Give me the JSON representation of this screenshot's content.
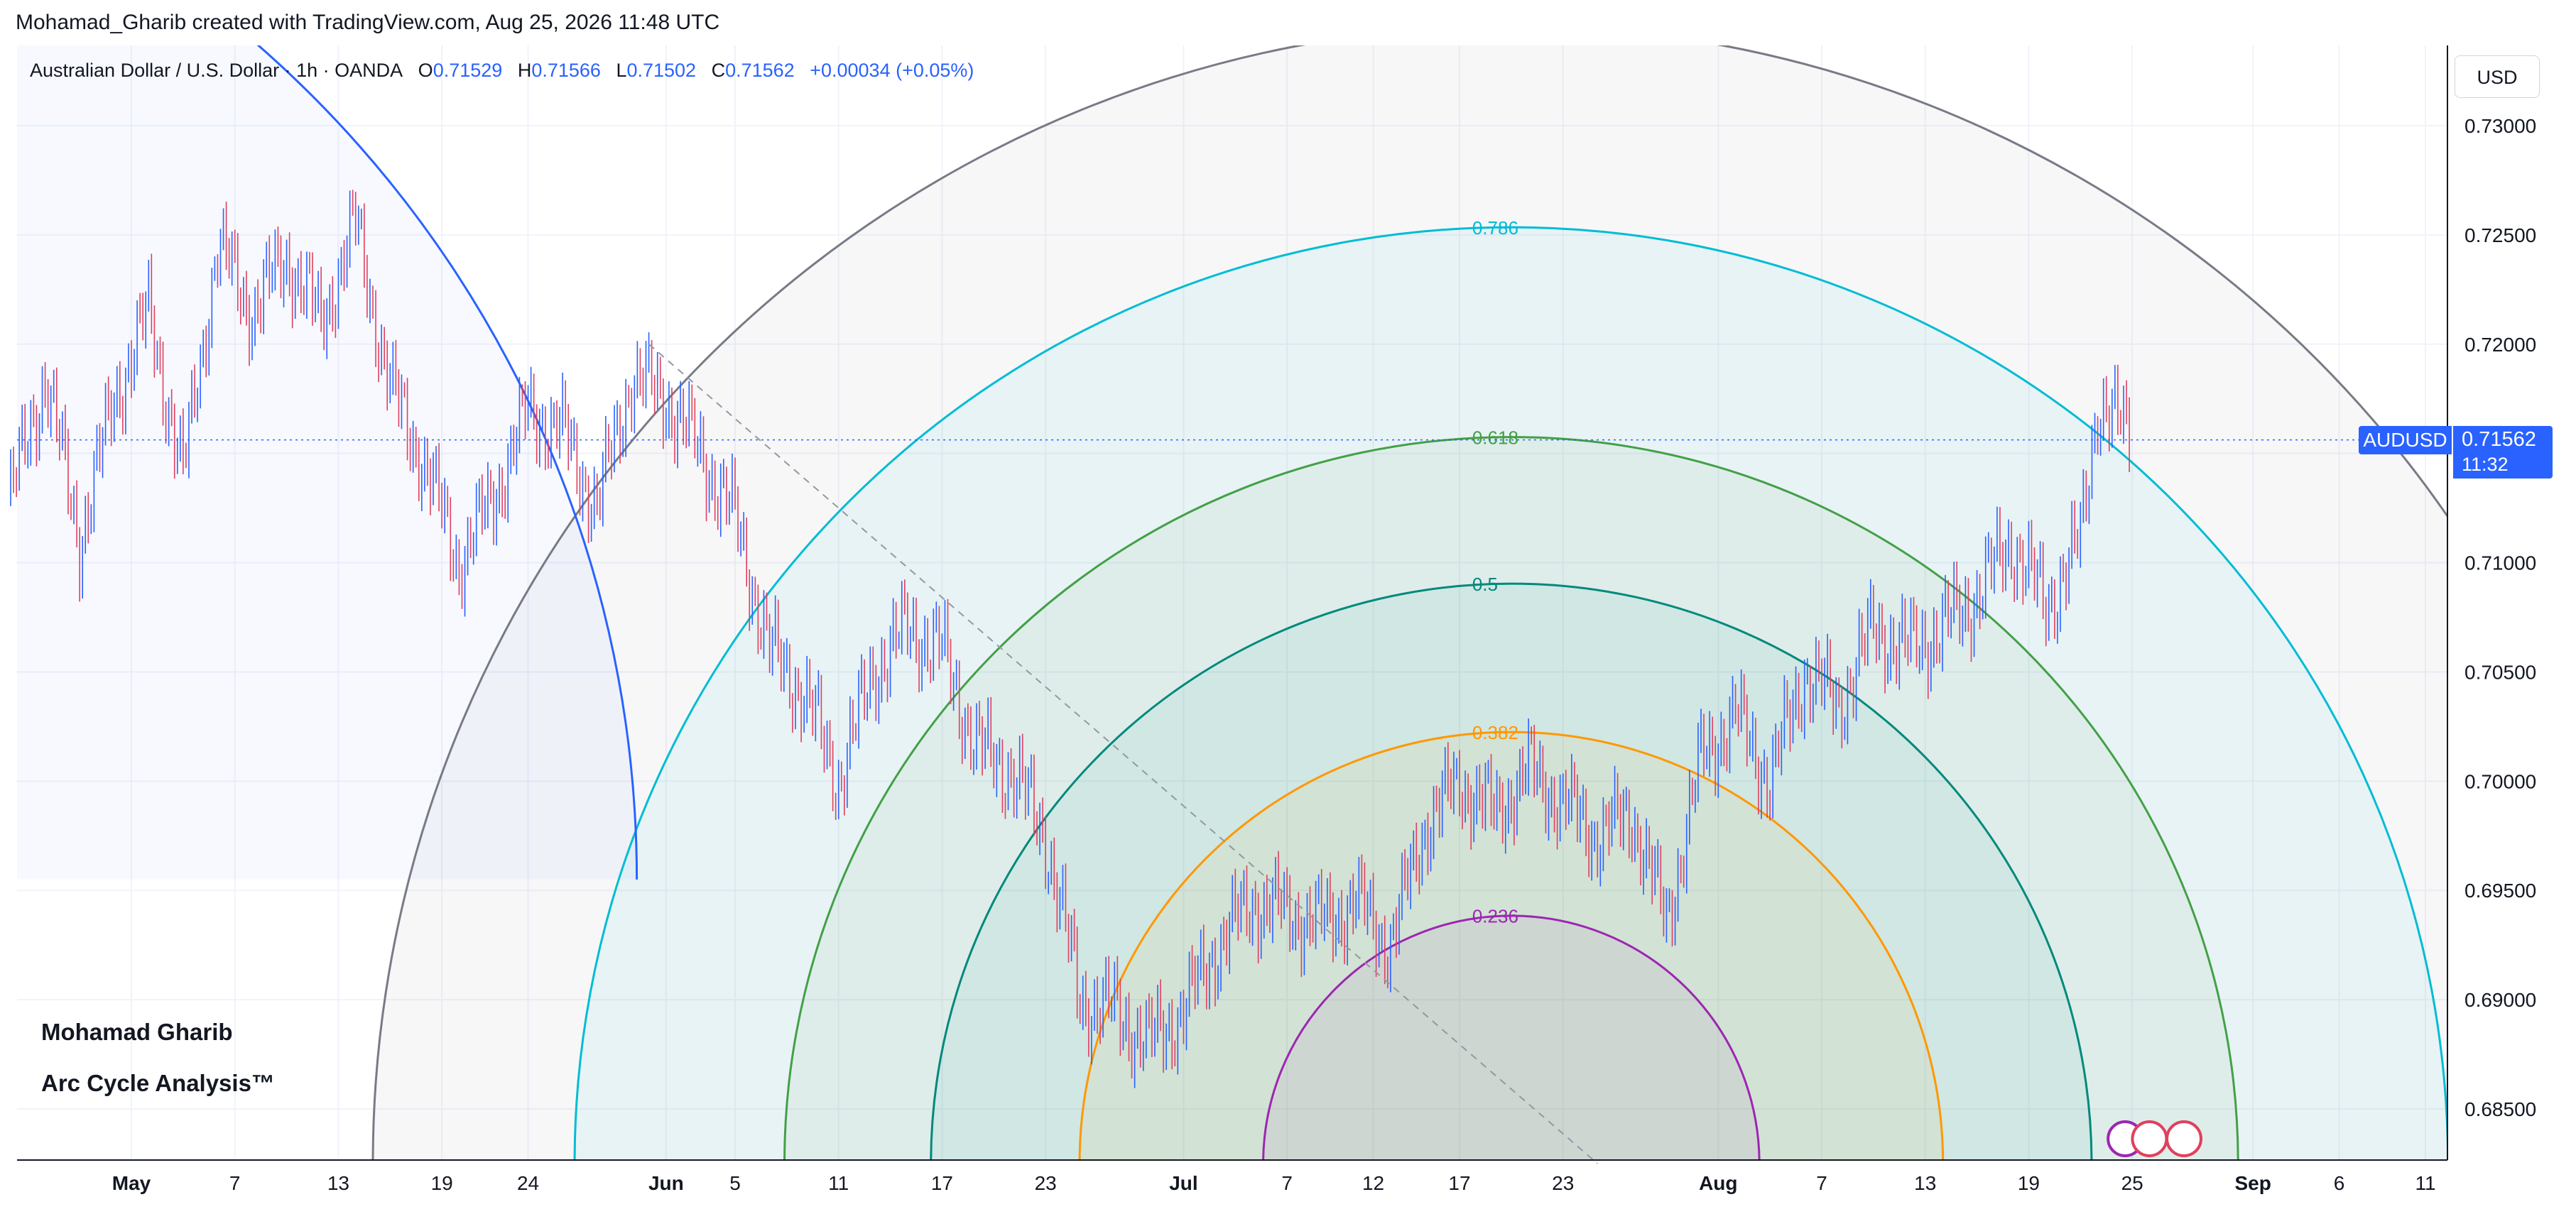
{
  "header": {
    "title": "Mohamad_Gharib created with TradingView.com, Aug 25, 2026 11:48 UTC"
  },
  "legend": {
    "symbol": "Australian Dollar / U.S. Dollar · 1h · OANDA",
    "open_label": "O",
    "open": "0.71529",
    "high_label": "H",
    "high": "0.71566",
    "low_label": "L",
    "low": "0.71502",
    "close_label": "C",
    "close": "0.71562",
    "change": "+0.00034 (+0.05%)"
  },
  "currency": "USD",
  "price_tag": {
    "symbol": "AUDUSD",
    "price": "0.71562",
    "countdown": "11:32"
  },
  "watermark": {
    "author": "Mohamad Gharib",
    "subtitle": "Arc Cycle Analysis™"
  },
  "colors": {
    "up_candle": "#2962ff",
    "down_candle": "#e0405e",
    "fib_0236": "#9c27b0",
    "fib_0382": "#ff9800",
    "fib_05": "#00897b",
    "fib_0618": "#43a047",
    "fib_0786": "#00bcd4",
    "fib_1": "#787b86",
    "trendline": "#2962ff"
  },
  "chart_data": {
    "type": "candlestick",
    "instrument": "AUDUSD",
    "timeframe": "1h",
    "ylim": [
      0.6825,
      0.7325
    ],
    "y_ticks": [
      "0.68500",
      "0.69000",
      "0.69500",
      "0.70000",
      "0.70500",
      "0.71000",
      "0.71500",
      "0.72000",
      "0.72500",
      "0.73000"
    ],
    "x_ticks": [
      {
        "label": "May",
        "date": "2026-05-01",
        "bold": true
      },
      {
        "label": "7",
        "date": "2026-05-07"
      },
      {
        "label": "13",
        "date": "2026-05-13"
      },
      {
        "label": "19",
        "date": "2026-05-19"
      },
      {
        "label": "24",
        "date": "2026-05-24"
      },
      {
        "label": "Jun",
        "date": "2026-06-01",
        "bold": true
      },
      {
        "label": "5",
        "date": "2026-06-05"
      },
      {
        "label": "11",
        "date": "2026-06-11"
      },
      {
        "label": "17",
        "date": "2026-06-17"
      },
      {
        "label": "23",
        "date": "2026-06-23"
      },
      {
        "label": "Jul",
        "date": "2026-07-01",
        "bold": true
      },
      {
        "label": "7",
        "date": "2026-07-07"
      },
      {
        "label": "12",
        "date": "2026-07-12"
      },
      {
        "label": "17",
        "date": "2026-07-17"
      },
      {
        "label": "23",
        "date": "2026-07-23"
      },
      {
        "label": "Aug",
        "date": "2026-08-01",
        "bold": true
      },
      {
        "label": "7",
        "date": "2026-08-07"
      },
      {
        "label": "13",
        "date": "2026-08-13"
      },
      {
        "label": "19",
        "date": "2026-08-19"
      },
      {
        "label": "25",
        "date": "2026-08-25"
      },
      {
        "label": "Sep",
        "date": "2026-09-01",
        "bold": true
      },
      {
        "label": "6",
        "date": "2026-09-06"
      },
      {
        "label": "11",
        "date": "2026-09-11"
      }
    ],
    "price_path": [
      [
        "2026-04-24",
        0.713
      ],
      [
        "2026-04-26",
        0.7185
      ],
      [
        "2026-04-28",
        0.711
      ],
      [
        "2026-04-30",
        0.7175
      ],
      [
        "2026-05-02",
        0.7215
      ],
      [
        "2026-05-04",
        0.714
      ],
      [
        "2026-05-06",
        0.7245
      ],
      [
        "2026-05-08",
        0.7215
      ],
      [
        "2026-05-10",
        0.724
      ],
      [
        "2026-05-12",
        0.721
      ],
      [
        "2026-05-14",
        0.7255
      ],
      [
        "2026-05-16",
        0.718
      ],
      [
        "2026-05-18",
        0.7145
      ],
      [
        "2026-05-20",
        0.71
      ],
      [
        "2026-05-22",
        0.713
      ],
      [
        "2026-05-24",
        0.717
      ],
      [
        "2026-05-26",
        0.716
      ],
      [
        "2026-05-28",
        0.7125
      ],
      [
        "2026-05-30",
        0.7185
      ],
      [
        "2026-06-01",
        0.7175
      ],
      [
        "2026-06-03",
        0.715
      ],
      [
        "2026-06-05",
        0.712
      ],
      [
        "2026-06-07",
        0.706
      ],
      [
        "2026-06-09",
        0.704
      ],
      [
        "2026-06-11",
        0.7
      ],
      [
        "2026-06-13",
        0.705
      ],
      [
        "2026-06-15",
        0.707
      ],
      [
        "2026-06-17",
        0.706
      ],
      [
        "2026-06-19",
        0.7015
      ],
      [
        "2026-06-21",
        0.7005
      ],
      [
        "2026-06-23",
        0.6975
      ],
      [
        "2026-06-25",
        0.69
      ],
      [
        "2026-06-27",
        0.6895
      ],
      [
        "2026-06-29",
        0.688
      ],
      [
        "2026-07-01",
        0.6895
      ],
      [
        "2026-07-03",
        0.6925
      ],
      [
        "2026-07-05",
        0.6945
      ],
      [
        "2026-07-07",
        0.694
      ],
      [
        "2026-07-09",
        0.6935
      ],
      [
        "2026-07-11",
        0.6945
      ],
      [
        "2026-07-13",
        0.6925
      ],
      [
        "2026-07-15",
        0.698
      ],
      [
        "2026-07-17",
        0.7
      ],
      [
        "2026-07-19",
        0.6985
      ],
      [
        "2026-07-21",
        0.7005
      ],
      [
        "2026-07-23",
        0.699
      ],
      [
        "2026-07-25",
        0.6975
      ],
      [
        "2026-07-27",
        0.6985
      ],
      [
        "2026-07-29",
        0.6935
      ],
      [
        "2026-07-31",
        0.701
      ],
      [
        "2026-08-02",
        0.703
      ],
      [
        "2026-08-04",
        0.7
      ],
      [
        "2026-08-06",
        0.705
      ],
      [
        "2026-08-08",
        0.7035
      ],
      [
        "2026-08-10",
        0.707
      ],
      [
        "2026-08-12",
        0.706
      ],
      [
        "2026-08-14",
        0.707
      ],
      [
        "2026-08-16",
        0.7085
      ],
      [
        "2026-08-18",
        0.711
      ],
      [
        "2026-08-20",
        0.708
      ],
      [
        "2026-08-22",
        0.711
      ],
      [
        "2026-08-23",
        0.7175
      ],
      [
        "2026-08-24",
        0.7165
      ],
      [
        "2026-08-25",
        0.7156
      ]
    ],
    "trendline_points": [
      [
        "2026-05-31",
        0.72
      ],
      [
        "2026-07-25",
        0.6825
      ]
    ],
    "fib_arcs": {
      "center_date": "2026-07-20",
      "center_price": 0.6825,
      "levels": [
        {
          "label": "",
          "value": 1,
          "reach_date": "2026-09-24"
        },
        {
          "label": "0.786",
          "value": 0.786,
          "reach_price": 0.72535
        },
        {
          "label": "0.618",
          "value": 0.618,
          "reach_price": 0.71575
        },
        {
          "label": "0.5",
          "value": 0.5,
          "reach_price": 0.70905
        },
        {
          "label": "0.382",
          "value": 0.382,
          "reach_price": 0.70225
        },
        {
          "label": "0.236",
          "value": 0.236,
          "reach_price": 0.69385
        }
      ]
    },
    "big_arc": {
      "center_date": "2026-03-27",
      "start_price": 0.6955,
      "end_date": "2026-05-10",
      "end_price": 0.7325
    }
  }
}
